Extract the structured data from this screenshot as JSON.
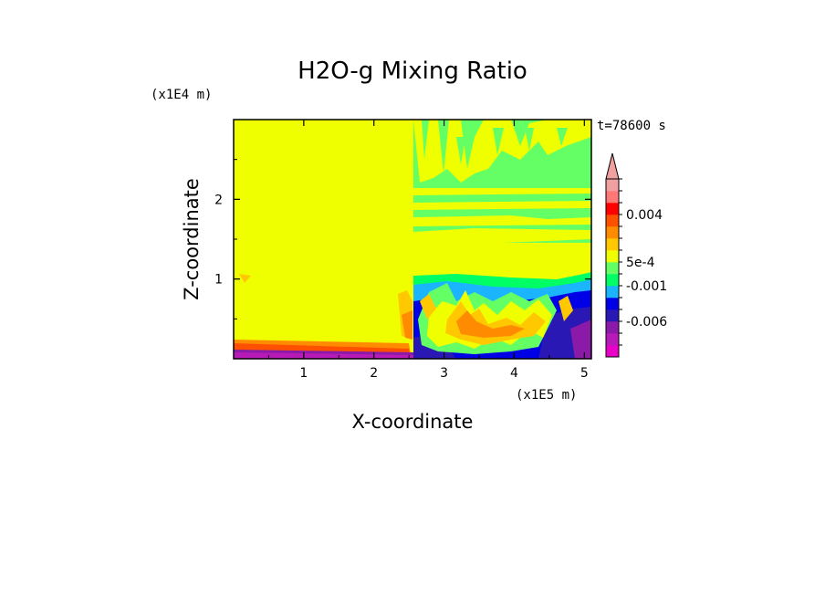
{
  "chart_data": {
    "type": "heatmap",
    "title": "H2O-g Mixing Ratio",
    "xlabel": "X-coordinate",
    "ylabel": "Z-coordinate",
    "x_unit": "(x1E5 m)",
    "y_unit": "(x1E4 m)",
    "time_label": "t=78600 s",
    "xlim": [
      0,
      5.1
    ],
    "ylim": [
      0,
      3.0
    ],
    "x_ticks": [
      "1",
      "2",
      "3",
      "4",
      "5"
    ],
    "x_tick_values": [
      1,
      2,
      3,
      4,
      5
    ],
    "y_ticks": [
      "1",
      "2"
    ],
    "y_tick_values": [
      1,
      2
    ],
    "colorbar": {
      "colors": [
        "#e800c8",
        "#b81ab8",
        "#8c1aa8",
        "#2a18b4",
        "#0000e6",
        "#1ab4ff",
        "#00ff64",
        "#64ff64",
        "#f0ff00",
        "#ffc800",
        "#ff8c00",
        "#ff5000",
        "#ff0000",
        "#ff7878",
        "#f0a0a0"
      ],
      "labels": [
        "-0.006",
        "-0.001",
        "5e-4",
        "0.004"
      ],
      "extend": "max"
    }
  }
}
